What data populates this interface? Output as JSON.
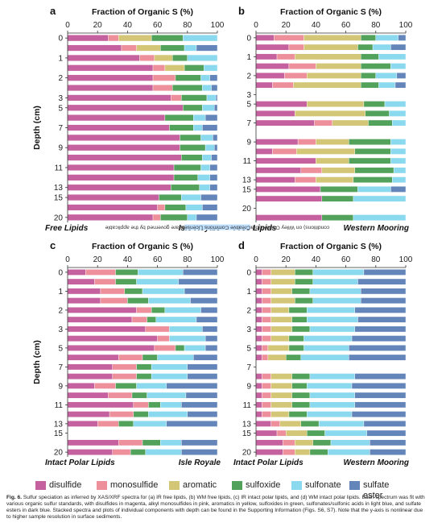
{
  "colors": {
    "disulfide": "#c4619e",
    "monosulfide": "#ee909c",
    "aromatic": "#d4c677",
    "sulfoxide": "#53a25b",
    "sulfonate": "#8ad9ee",
    "sulfate ester": "#6385b9"
  },
  "legend": [
    "disulfide",
    "monosulfide",
    "aromatic",
    "sulfoxide",
    "sulfonate",
    "sulfate ester"
  ],
  "sidebar_text": {
    "pre": "conditions) on Wiley Online Library for rules of use; OA articles are governed by the applicable ",
    "highlight": "Creative Commons License"
  },
  "caption": {
    "label": "Fig. 6.",
    "text": "Sulfur speciation as inferred by XAS/XRF spectra for (a) IR free lipids, (b) WM free lipids, (c) IR intact polar lipids, and (d) WM intact polar lipids. Each spectrum was fit with various organic sulfur standards, with disulfides in magenta, alkyl monosulfides in pink, aromatics in yellow, sulfoxides in green, sulfonates/sulfonic acids in light blue, and sulfate esters in dark blue. Stacked spectra and plots of individual components with depth can be found in the Supporting Information (Figs. S6, S7). Note that the y-axis is nonlinear due to higher sample resolution in surface sediments."
  },
  "chart_data": [
    {
      "type": "bar",
      "stacked": true,
      "orientation": "horizontal",
      "panel": "a",
      "title": "Fraction of Organic S (%)",
      "ylabel": "Depth (cm)",
      "xlim": [
        0,
        100
      ],
      "x_ticks": [
        "0",
        "20",
        "40",
        "60",
        "80",
        "100"
      ],
      "y_ticks": [
        "0",
        "1",
        "2",
        "3",
        "5",
        "7",
        "9",
        "11",
        "13",
        "15",
        "20"
      ],
      "labels": [
        "Free Lipids",
        "Isle Royale"
      ],
      "bars": [
        {
          "depth": "0",
          "values": [
            27,
            7,
            22,
            21,
            23,
            0
          ]
        },
        {
          "depth": "",
          "values": [
            36,
            10,
            16,
            16,
            8,
            14
          ]
        },
        {
          "depth": "1",
          "values": [
            48,
            10,
            12,
            10,
            20,
            0
          ]
        },
        {
          "depth": "",
          "values": [
            57,
            8,
            13,
            13,
            9,
            0
          ]
        },
        {
          "depth": "2",
          "values": [
            57,
            15,
            0,
            17,
            6,
            5
          ]
        },
        {
          "depth": "",
          "values": [
            57,
            13,
            0,
            20,
            6,
            4
          ]
        },
        {
          "depth": "3",
          "values": [
            69,
            7,
            0,
            17,
            6,
            1
          ]
        },
        {
          "depth": "5",
          "values": [
            77,
            0,
            0,
            13,
            8,
            2
          ]
        },
        {
          "depth": "",
          "values": [
            65,
            0,
            0,
            19,
            8,
            8
          ]
        },
        {
          "depth": "7",
          "values": [
            68,
            0,
            0,
            16,
            6,
            10
          ]
        },
        {
          "depth": "",
          "values": [
            75,
            0,
            0,
            14,
            8,
            3
          ]
        },
        {
          "depth": "9",
          "values": [
            75,
            0,
            0,
            17,
            6,
            2
          ]
        },
        {
          "depth": "",
          "values": [
            76,
            0,
            0,
            14,
            6,
            4
          ]
        },
        {
          "depth": "11",
          "values": [
            71,
            0,
            0,
            18,
            6,
            5
          ]
        },
        {
          "depth": "",
          "values": [
            71,
            0,
            0,
            16,
            8,
            5
          ]
        },
        {
          "depth": "13",
          "values": [
            69,
            0,
            0,
            19,
            7,
            5
          ]
        },
        {
          "depth": "15",
          "values": [
            61,
            0,
            0,
            15,
            13,
            11
          ]
        },
        {
          "depth": "",
          "values": [
            60,
            5,
            0,
            14,
            11,
            10
          ]
        },
        {
          "depth": "20",
          "values": [
            57,
            5,
            0,
            18,
            6,
            14
          ]
        }
      ]
    },
    {
      "type": "bar",
      "stacked": true,
      "orientation": "horizontal",
      "panel": "b",
      "title": "Fraction of Organic S (%)",
      "ylabel": "",
      "xlim": [
        0,
        100
      ],
      "x_ticks": [
        "0",
        "20",
        "40",
        "60",
        "80",
        "100"
      ],
      "y_ticks": [
        "0",
        "1",
        "2",
        "3",
        "5",
        "7",
        "9",
        "11",
        "13",
        "15",
        "20"
      ],
      "labels": [
        "Free Lipids",
        "Western Mooring"
      ],
      "bars": [
        {
          "depth": "0",
          "values": [
            12,
            20,
            38,
            10,
            15,
            5
          ]
        },
        {
          "depth": "",
          "values": [
            22,
            10,
            36,
            10,
            12,
            10
          ]
        },
        {
          "depth": "1",
          "values": [
            14,
            12,
            44,
            12,
            18,
            0
          ]
        },
        {
          "depth": "",
          "values": [
            22,
            18,
            30,
            20,
            10,
            0
          ]
        },
        {
          "depth": "2",
          "values": [
            19,
            15,
            36,
            10,
            14,
            6
          ]
        },
        {
          "depth": "",
          "values": [
            11,
            14,
            45,
            12,
            11,
            7
          ]
        },
        {
          "depth": "3",
          "values": [
            0,
            0,
            0,
            0,
            0,
            0
          ]
        },
        {
          "depth": "5",
          "values": [
            34,
            0,
            38,
            14,
            14,
            0
          ]
        },
        {
          "depth": "",
          "values": [
            26,
            0,
            47,
            16,
            11,
            0
          ]
        },
        {
          "depth": "7",
          "values": [
            39,
            12,
            24,
            16,
            9,
            0
          ]
        },
        {
          "depth": "",
          "values": [
            0,
            0,
            0,
            0,
            0,
            0
          ]
        },
        {
          "depth": "9",
          "values": [
            28,
            12,
            22,
            28,
            12,
            0
          ]
        },
        {
          "depth": "",
          "values": [
            11,
            16,
            39,
            24,
            10,
            0
          ]
        },
        {
          "depth": "11",
          "values": [
            40,
            0,
            22,
            28,
            10,
            0
          ]
        },
        {
          "depth": "",
          "values": [
            30,
            14,
            22,
            26,
            8,
            0
          ]
        },
        {
          "depth": "13",
          "values": [
            26,
            14,
            25,
            26,
            9,
            0
          ]
        },
        {
          "depth": "15",
          "values": [
            43,
            0,
            0,
            25,
            22,
            10
          ]
        },
        {
          "depth": "",
          "values": [
            44,
            0,
            0,
            21,
            35,
            0
          ]
        },
        {
          "depth": "20",
          "values": [
            0,
            0,
            0,
            0,
            0,
            0
          ]
        },
        {
          "depth": "",
          "values": [
            44,
            0,
            0,
            21,
            35,
            0
          ]
        }
      ]
    },
    {
      "type": "bar",
      "stacked": true,
      "orientation": "horizontal",
      "panel": "c",
      "title": "Fraction of Organic S (%)",
      "ylabel": "Depth (cm)",
      "xlim": [
        0,
        100
      ],
      "x_ticks": [
        "0",
        "20",
        "40",
        "60",
        "80",
        "100"
      ],
      "y_ticks": [
        "0",
        "1",
        "2",
        "3",
        "5",
        "7",
        "9",
        "11",
        "13",
        "15",
        "20"
      ],
      "labels": [
        "Intact Polar Lipids",
        "Isle Royale"
      ],
      "bars": [
        {
          "depth": "0",
          "values": [
            12,
            20,
            0,
            15,
            30,
            23
          ]
        },
        {
          "depth": "",
          "values": [
            18,
            14,
            0,
            14,
            28,
            26
          ]
        },
        {
          "depth": "1",
          "values": [
            22,
            16,
            0,
            12,
            28,
            22
          ]
        },
        {
          "depth": "",
          "values": [
            22,
            18,
            0,
            14,
            28,
            18
          ]
        },
        {
          "depth": "2",
          "values": [
            46,
            10,
            0,
            9,
            24,
            11
          ]
        },
        {
          "depth": "",
          "values": [
            43,
            10,
            0,
            6,
            27,
            14
          ]
        },
        {
          "depth": "3",
          "values": [
            52,
            16,
            0,
            0,
            22,
            10
          ]
        },
        {
          "depth": "",
          "values": [
            60,
            8,
            0,
            0,
            24,
            8
          ]
        },
        {
          "depth": "5",
          "values": [
            58,
            14,
            0,
            6,
            14,
            8
          ]
        },
        {
          "depth": "",
          "values": [
            34,
            16,
            0,
            10,
            24,
            16
          ]
        },
        {
          "depth": "7",
          "values": [
            30,
            16,
            0,
            10,
            24,
            20
          ]
        },
        {
          "depth": "",
          "values": [
            30,
            16,
            0,
            10,
            24,
            20
          ]
        },
        {
          "depth": "9",
          "values": [
            18,
            14,
            0,
            14,
            20,
            34
          ]
        },
        {
          "depth": "",
          "values": [
            27,
            16,
            0,
            10,
            26,
            21
          ]
        },
        {
          "depth": "11",
          "values": [
            44,
            10,
            0,
            8,
            14,
            24
          ]
        },
        {
          "depth": "",
          "values": [
            28,
            16,
            0,
            10,
            26,
            20
          ]
        },
        {
          "depth": "13",
          "values": [
            20,
            14,
            0,
            10,
            22,
            34
          ]
        },
        {
          "depth": "15",
          "values": [
            0,
            0,
            0,
            0,
            0,
            0
          ]
        },
        {
          "depth": "",
          "values": [
            34,
            16,
            0,
            12,
            14,
            24
          ]
        },
        {
          "depth": "20",
          "values": [
            30,
            12,
            0,
            10,
            24,
            24
          ]
        }
      ]
    },
    {
      "type": "bar",
      "stacked": true,
      "orientation": "horizontal",
      "panel": "d",
      "title": "Fraction of Organic S (%)",
      "ylabel": "",
      "xlim": [
        0,
        100
      ],
      "x_ticks": [
        "0",
        "20",
        "40",
        "60",
        "80",
        "100"
      ],
      "y_ticks": [
        "0",
        "1",
        "2",
        "3",
        "5",
        "7",
        "9",
        "11",
        "13",
        "15",
        "20"
      ],
      "labels": [
        "Intact Polar Lipids",
        "Western Mooring"
      ],
      "bars": [
        {
          "depth": "0",
          "values": [
            4,
            6,
            16,
            12,
            34,
            28
          ]
        },
        {
          "depth": "",
          "values": [
            4,
            6,
            16,
            12,
            30,
            32
          ]
        },
        {
          "depth": "1",
          "values": [
            4,
            6,
            14,
            12,
            34,
            30
          ]
        },
        {
          "depth": "",
          "values": [
            4,
            6,
            16,
            12,
            32,
            30
          ]
        },
        {
          "depth": "2",
          "values": [
            4,
            6,
            12,
            12,
            32,
            34
          ]
        },
        {
          "depth": "",
          "values": [
            4,
            6,
            14,
            10,
            34,
            32
          ]
        },
        {
          "depth": "3",
          "values": [
            4,
            6,
            14,
            12,
            30,
            34
          ]
        },
        {
          "depth": "",
          "values": [
            4,
            6,
            12,
            10,
            32,
            36
          ]
        },
        {
          "depth": "5",
          "values": [
            4,
            4,
            14,
            10,
            30,
            38
          ]
        },
        {
          "depth": "",
          "values": [
            4,
            4,
            12,
            10,
            32,
            38
          ]
        },
        {
          "depth": "7",
          "values": [
            0,
            0,
            0,
            0,
            0,
            0
          ]
        },
        {
          "depth": "",
          "values": [
            4,
            6,
            14,
            12,
            30,
            34
          ]
        },
        {
          "depth": "9",
          "values": [
            4,
            6,
            14,
            10,
            30,
            36
          ]
        },
        {
          "depth": "",
          "values": [
            4,
            6,
            14,
            12,
            30,
            34
          ]
        },
        {
          "depth": "11",
          "values": [
            4,
            6,
            14,
            12,
            30,
            34
          ]
        },
        {
          "depth": "",
          "values": [
            4,
            6,
            12,
            12,
            30,
            36
          ]
        },
        {
          "depth": "13",
          "values": [
            10,
            6,
            14,
            12,
            30,
            28
          ]
        },
        {
          "depth": "15",
          "values": [
            14,
            6,
            14,
            12,
            28,
            26
          ]
        },
        {
          "depth": "",
          "values": [
            18,
            8,
            12,
            12,
            26,
            24
          ]
        },
        {
          "depth": "20",
          "values": [
            18,
            8,
            10,
            12,
            28,
            24
          ]
        }
      ]
    }
  ]
}
